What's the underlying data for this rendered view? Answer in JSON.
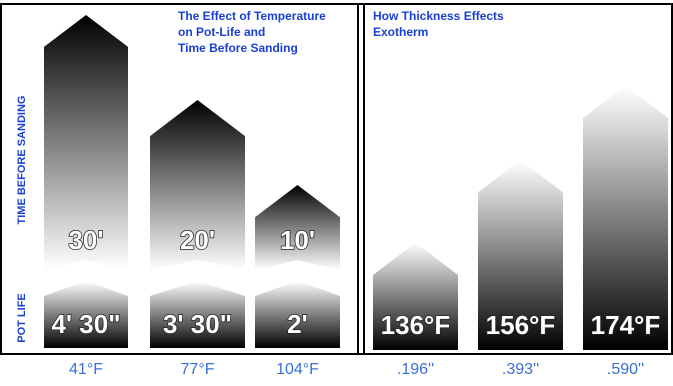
{
  "chart_data": [
    {
      "type": "arrow-bar",
      "title": [
        "The Effect of Temperature",
        "on Pot-Life and",
        "Time Before Sanding"
      ],
      "y_label": "TIME BEFORE SANDING",
      "categories": [
        "41°F",
        "77°F",
        "104°F"
      ],
      "values": [
        30,
        20,
        10
      ],
      "value_labels": [
        "30'",
        "20'",
        "10'"
      ],
      "ylim": [
        0,
        30
      ],
      "pot_life_label": "POT LIFE",
      "pot_life": [
        "4' 30\"",
        "3' 30\"",
        "2'"
      ]
    },
    {
      "type": "arrow-bar",
      "title": [
        "How Thickness Effects",
        "Exotherm"
      ],
      "categories": [
        ".196''",
        ".393''",
        ".590''"
      ],
      "values": [
        136,
        156,
        174
      ],
      "value_labels": [
        "136°F",
        "156°F",
        "174°F"
      ],
      "ylim": [
        110,
        180
      ]
    }
  ]
}
